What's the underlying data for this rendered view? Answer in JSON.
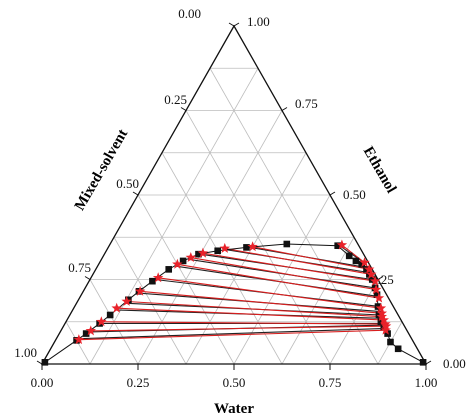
{
  "chart_data": {
    "type": "ternary",
    "axes": {
      "bottom": {
        "title": "Water",
        "ticks": [
          "0.00",
          "0.25",
          "0.50",
          "0.75",
          "1.00"
        ]
      },
      "left": {
        "title": "Mixed-solvent",
        "ticks": [
          "0.00",
          "0.25",
          "0.50",
          "0.75",
          "1.00"
        ]
      },
      "right": {
        "title": "Ethanol",
        "ticks": [
          "0.00",
          "0.25",
          "0.50",
          "0.75",
          "1.00"
        ]
      }
    },
    "grid": true,
    "grid_step": 0.125,
    "colors": {
      "binodal": "#111111",
      "tie_line_dark": "#222222",
      "tie_line_red": "#d81e1e",
      "marker_square": "#111111",
      "marker_star": "#e8222a"
    },
    "binodal": [
      {
        "water": 0.005,
        "ethanol": 0.005
      },
      {
        "water": 0.055,
        "ethanol": 0.07
      },
      {
        "water": 0.07,
        "ethanol": 0.09
      },
      {
        "water": 0.09,
        "ethanol": 0.12
      },
      {
        "water": 0.105,
        "ethanol": 0.145
      },
      {
        "water": 0.13,
        "ethanol": 0.19
      },
      {
        "water": 0.145,
        "ethanol": 0.215
      },
      {
        "water": 0.165,
        "ethanol": 0.245
      },
      {
        "water": 0.19,
        "ethanol": 0.28
      },
      {
        "water": 0.215,
        "ethanol": 0.305
      },
      {
        "water": 0.245,
        "ethanol": 0.325
      },
      {
        "water": 0.29,
        "ethanol": 0.335
      },
      {
        "water": 0.36,
        "ethanol": 0.345
      },
      {
        "water": 0.46,
        "ethanol": 0.355
      },
      {
        "water": 0.595,
        "ethanol": 0.35
      },
      {
        "water": 0.64,
        "ethanol": 0.32
      },
      {
        "water": 0.665,
        "ethanol": 0.305
      },
      {
        "water": 0.685,
        "ethanol": 0.295
      },
      {
        "water": 0.705,
        "ethanol": 0.28
      },
      {
        "water": 0.72,
        "ethanol": 0.265
      },
      {
        "water": 0.735,
        "ethanol": 0.25
      },
      {
        "water": 0.755,
        "ethanol": 0.225
      },
      {
        "water": 0.77,
        "ethanol": 0.205
      },
      {
        "water": 0.79,
        "ethanol": 0.17
      },
      {
        "water": 0.805,
        "ethanol": 0.145
      },
      {
        "water": 0.82,
        "ethanol": 0.125
      },
      {
        "water": 0.835,
        "ethanol": 0.11
      },
      {
        "water": 0.855,
        "ethanol": 0.09
      },
      {
        "water": 0.875,
        "ethanol": 0.065
      },
      {
        "water": 0.905,
        "ethanol": 0.045
      },
      {
        "water": 0.99,
        "ethanol": 0.005
      }
    ],
    "tie_lines_experimental": [
      [
        {
          "water": 0.06,
          "ethanol": 0.075
        },
        {
          "water": 0.84,
          "ethanol": 0.105
        }
      ],
      [
        {
          "water": 0.075,
          "ethanol": 0.095
        },
        {
          "water": 0.835,
          "ethanol": 0.115
        }
      ],
      [
        {
          "water": 0.09,
          "ethanol": 0.12
        },
        {
          "water": 0.83,
          "ethanol": 0.12
        }
      ],
      [
        {
          "water": 0.11,
          "ethanol": 0.16
        },
        {
          "water": 0.82,
          "ethanol": 0.135
        }
      ],
      [
        {
          "water": 0.125,
          "ethanol": 0.18
        },
        {
          "water": 0.81,
          "ethanol": 0.145
        }
      ],
      [
        {
          "water": 0.145,
          "ethanol": 0.21
        },
        {
          "water": 0.805,
          "ethanol": 0.155
        }
      ],
      [
        {
          "water": 0.17,
          "ethanol": 0.25
        },
        {
          "water": 0.795,
          "ethanol": 0.17
        }
      ],
      [
        {
          "water": 0.2,
          "ethanol": 0.29
        },
        {
          "water": 0.775,
          "ethanol": 0.2
        }
      ],
      [
        {
          "water": 0.225,
          "ethanol": 0.31
        },
        {
          "water": 0.755,
          "ethanol": 0.225
        }
      ],
      [
        {
          "water": 0.25,
          "ethanol": 0.325
        },
        {
          "water": 0.735,
          "ethanol": 0.25
        }
      ],
      [
        {
          "water": 0.3,
          "ethanol": 0.34
        },
        {
          "water": 0.72,
          "ethanol": 0.27
        }
      ],
      [
        {
          "water": 0.37,
          "ethanol": 0.345
        },
        {
          "water": 0.705,
          "ethanol": 0.285
        }
      ],
      [
        {
          "water": 0.6,
          "ethanol": 0.35
        },
        {
          "water": 0.68,
          "ethanol": 0.305
        }
      ]
    ],
    "tie_lines_calculated": [
      [
        {
          "water": 0.06,
          "ethanol": 0.072
        },
        {
          "water": 0.845,
          "ethanol": 0.1
        }
      ],
      [
        {
          "water": 0.078,
          "ethanol": 0.098
        },
        {
          "water": 0.84,
          "ethanol": 0.112
        }
      ],
      [
        {
          "water": 0.092,
          "ethanol": 0.125
        },
        {
          "water": 0.835,
          "ethanol": 0.118
        }
      ],
      [
        {
          "water": 0.112,
          "ethanol": 0.165
        },
        {
          "water": 0.825,
          "ethanol": 0.13
        }
      ],
      [
        {
          "water": 0.128,
          "ethanol": 0.185
        },
        {
          "water": 0.815,
          "ethanol": 0.14
        }
      ],
      [
        {
          "water": 0.148,
          "ethanol": 0.215
        },
        {
          "water": 0.81,
          "ethanol": 0.15
        }
      ],
      [
        {
          "water": 0.175,
          "ethanol": 0.255
        },
        {
          "water": 0.8,
          "ethanol": 0.165
        }
      ],
      [
        {
          "water": 0.205,
          "ethanol": 0.295
        },
        {
          "water": 0.78,
          "ethanol": 0.195
        }
      ],
      [
        {
          "water": 0.23,
          "ethanol": 0.315
        },
        {
          "water": 0.76,
          "ethanol": 0.22
        }
      ],
      [
        {
          "water": 0.255,
          "ethanol": 0.328
        },
        {
          "water": 0.745,
          "ethanol": 0.245
        }
      ],
      [
        {
          "water": 0.305,
          "ethanol": 0.342
        },
        {
          "water": 0.725,
          "ethanol": 0.265
        }
      ],
      [
        {
          "water": 0.375,
          "ethanol": 0.347
        },
        {
          "water": 0.712,
          "ethanol": 0.28
        }
      ],
      [
        {
          "water": 0.605,
          "ethanol": 0.352
        },
        {
          "water": 0.69,
          "ethanol": 0.3
        }
      ]
    ]
  }
}
